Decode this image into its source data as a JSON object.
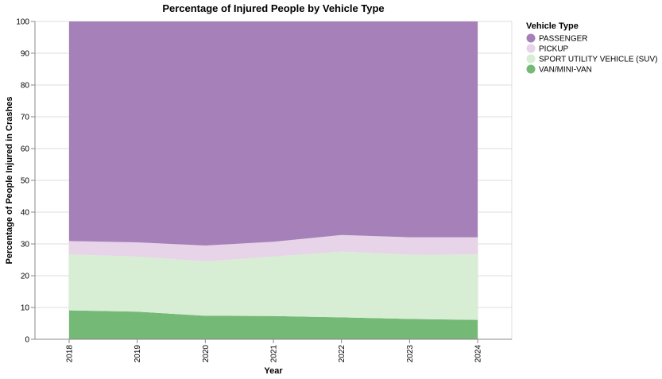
{
  "chart_data": {
    "type": "area",
    "stacked": true,
    "title": "Percentage of Injured People by Vehicle Type",
    "xlabel": "Year",
    "ylabel": "Percentage of People Injured in Crashes",
    "x": [
      "2018",
      "2019",
      "2020",
      "2021",
      "2022",
      "2023",
      "2024"
    ],
    "ylim": [
      0,
      100
    ],
    "yticks": [
      0,
      10,
      20,
      30,
      40,
      50,
      60,
      70,
      80,
      90,
      100
    ],
    "grid": true,
    "legend": {
      "title": "Vehicle Type",
      "position": "right"
    },
    "series": [
      {
        "name": "VAN/MINI-VAN",
        "color": "#75b976",
        "values": [
          9.1,
          8.7,
          7.4,
          7.3,
          6.9,
          6.4,
          6.1
        ]
      },
      {
        "name": "SPORT UTILITY VEHICLE (SUV)",
        "color": "#d8eed4",
        "values": [
          17.6,
          17.3,
          17.1,
          18.7,
          20.7,
          20.2,
          20.6
        ]
      },
      {
        "name": "PICKUP",
        "color": "#e7d4e8",
        "values": [
          4.2,
          4.5,
          5.0,
          4.7,
          5.2,
          5.5,
          5.4
        ]
      },
      {
        "name": "PASSENGER",
        "color": "#a680b8",
        "values": [
          69.1,
          69.5,
          70.5,
          69.3,
          67.2,
          67.9,
          67.9
        ]
      }
    ],
    "legend_order": [
      "PASSENGER",
      "PICKUP",
      "SPORT UTILITY VEHICLE (SUV)",
      "VAN/MINI-VAN"
    ]
  }
}
